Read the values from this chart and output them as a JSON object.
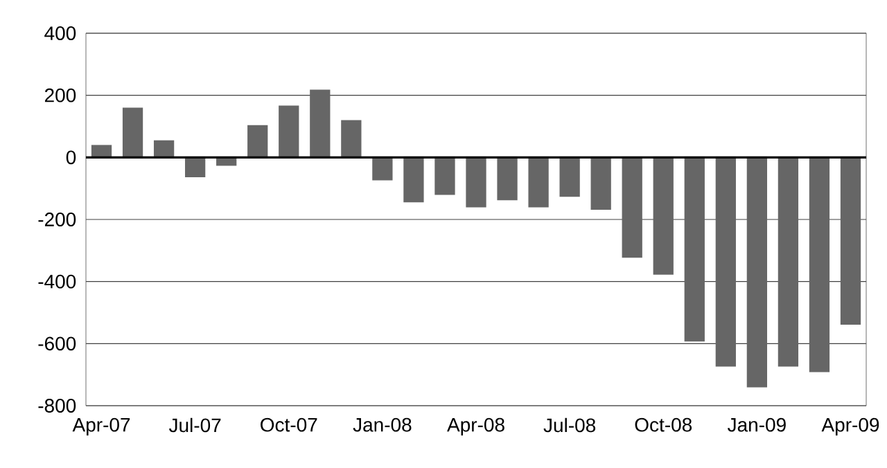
{
  "chart_data": {
    "type": "bar",
    "categories": [
      "Apr-07",
      null,
      null,
      "Jul-07",
      null,
      null,
      "Oct-07",
      null,
      null,
      "Jan-08",
      null,
      null,
      "Apr-08",
      null,
      null,
      "Jul-08",
      null,
      null,
      "Oct-08",
      null,
      null,
      "Jan-09",
      null,
      null,
      "Apr-09"
    ],
    "values": [
      40,
      160,
      55,
      -64,
      -27,
      104,
      167,
      218,
      120,
      -74,
      -145,
      -121,
      -161,
      -138,
      -161,
      -127,
      -169,
      -323,
      -378,
      -593,
      -674,
      -741,
      -674,
      -692,
      -539
    ],
    "color": "#666666",
    "ylim": [
      -800,
      400
    ],
    "yticks": [
      -800,
      -600,
      -400,
      -200,
      0,
      200,
      400
    ],
    "grid": "y"
  }
}
